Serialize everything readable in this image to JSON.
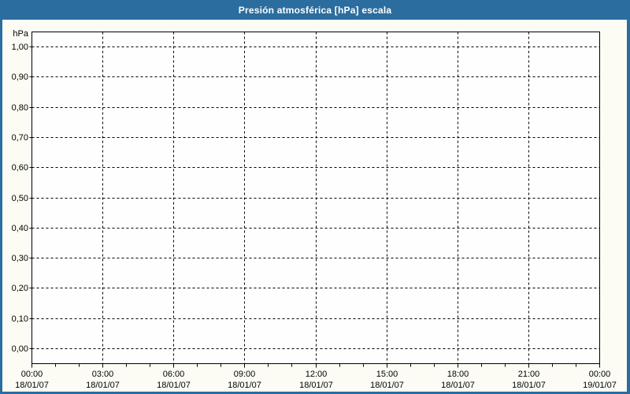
{
  "window": {
    "title": "Presión atmosférica [hPa] escala"
  },
  "colors": {
    "titlebar": "#2b6d9e",
    "frame": "#2b6d9e",
    "panel_background": "#fcfcf5",
    "plot_background": "#fefefe",
    "grid": "#000000",
    "axis": "#000000",
    "text": "#000000",
    "title_text": "#ffffff"
  },
  "chart_data": {
    "type": "line",
    "title": "Presión atmosférica [hPa] escala",
    "ylabel": "hPa",
    "xlabel": "",
    "grid": true,
    "legend": "none",
    "series": [],
    "ylim": [
      -0.05,
      1.05
    ],
    "x_hours_range": [
      0,
      24
    ],
    "minor_tick_every_hours": 1,
    "major_tick_every_hours": 3,
    "yticks": [
      {
        "label": "1,00",
        "value": 1.0
      },
      {
        "label": "0,90",
        "value": 0.9
      },
      {
        "label": "0,80",
        "value": 0.8
      },
      {
        "label": "0,70",
        "value": 0.7
      },
      {
        "label": "0,60",
        "value": 0.6
      },
      {
        "label": "0,50",
        "value": 0.5
      },
      {
        "label": "0,40",
        "value": 0.4
      },
      {
        "label": "0,30",
        "value": 0.3
      },
      {
        "label": "0,20",
        "value": 0.2
      },
      {
        "label": "0,10",
        "value": 0.1
      },
      {
        "label": "0,00",
        "value": 0.0
      }
    ],
    "xticks": [
      {
        "hour": 0,
        "time": "00:00",
        "date": "18/01/07"
      },
      {
        "hour": 3,
        "time": "03:00",
        "date": "18/01/07"
      },
      {
        "hour": 6,
        "time": "06:00",
        "date": "18/01/07"
      },
      {
        "hour": 9,
        "time": "09:00",
        "date": "18/01/07"
      },
      {
        "hour": 12,
        "time": "12:00",
        "date": "18/01/07"
      },
      {
        "hour": 15,
        "time": "15:00",
        "date": "18/01/07"
      },
      {
        "hour": 18,
        "time": "18:00",
        "date": "18/01/07"
      },
      {
        "hour": 21,
        "time": "21:00",
        "date": "18/01/07"
      },
      {
        "hour": 24,
        "time": "00:00",
        "date": "19/01/07"
      }
    ]
  }
}
